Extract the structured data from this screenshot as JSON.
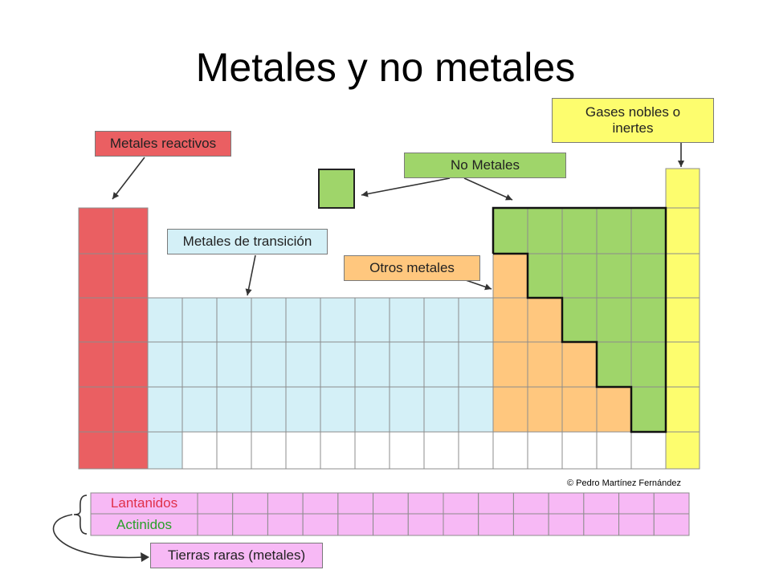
{
  "title": "Metales y no metales",
  "labels": {
    "metales_reactivos": "Metales reactivos",
    "gases_nobles_line1": "Gases nobles o",
    "gases_nobles_line2": "inertes",
    "no_metales": "No Metales",
    "metales_transicion": "Metales de transición",
    "otros_metales": "Otros metales",
    "tierras_raras": "Tierras raras (metales)"
  },
  "fblock": {
    "lantanidos": "Lantanidos",
    "actinidos": "Actinidos"
  },
  "copyright": "© Pedro Martínez Fernández",
  "colors": {
    "reactive": "#ea5f62",
    "transition": "#d4f0f7",
    "other_metals": "#ffc77e",
    "nonmetals": "#9fd56a",
    "noble": "#fdfd6e",
    "rare_earth": "#f7b9f5",
    "lanthanides_text": "#e0304a",
    "actinides_text": "#2aa02a"
  }
}
